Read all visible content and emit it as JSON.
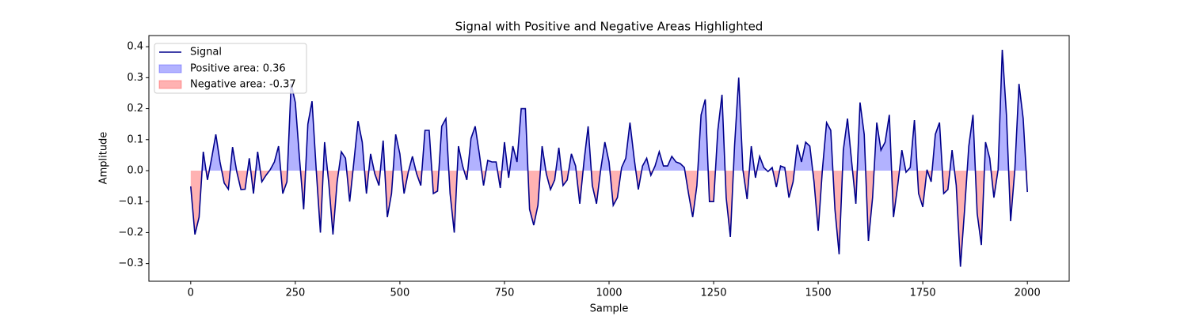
{
  "chart_data": {
    "type": "line",
    "title": "Signal with Positive and Negative Areas Highlighted",
    "xlabel": "Sample",
    "ylabel": "Amplitude",
    "xlim": [
      -100,
      2100
    ],
    "ylim": [
      -0.357,
      0.436
    ],
    "xticks": [
      0,
      250,
      500,
      750,
      1000,
      1250,
      1500,
      1750,
      2000
    ],
    "yticks": [
      {
        "value": -0.3,
        "label": "−0.3"
      },
      {
        "value": -0.2,
        "label": "−0.2"
      },
      {
        "value": -0.1,
        "label": "−0.1"
      },
      {
        "value": 0,
        "label": "0.0"
      },
      0.1,
      0.2,
      0.3,
      0.4
    ],
    "legend": "upper left",
    "x": [
      0,
      10,
      20,
      30,
      40,
      50,
      60,
      70,
      80,
      90,
      100,
      110,
      120,
      130,
      140,
      150,
      160,
      170,
      180,
      190,
      200,
      210,
      220,
      230,
      240,
      250,
      260,
      270,
      280,
      290,
      300,
      310,
      320,
      330,
      340,
      350,
      360,
      370,
      380,
      390,
      400,
      410,
      420,
      430,
      440,
      450,
      460,
      470,
      480,
      490,
      500,
      510,
      520,
      530,
      540,
      550,
      560,
      570,
      580,
      590,
      600,
      610,
      620,
      630,
      640,
      650,
      660,
      670,
      680,
      690,
      700,
      710,
      720,
      730,
      740,
      750,
      760,
      770,
      780,
      790,
      800,
      810,
      820,
      830,
      840,
      850,
      860,
      870,
      880,
      890,
      900,
      910,
      920,
      930,
      940,
      950,
      960,
      970,
      980,
      990,
      1000,
      1010,
      1020,
      1030,
      1040,
      1050,
      1060,
      1070,
      1080,
      1090,
      1100,
      1110,
      1120,
      1130,
      1140,
      1150,
      1160,
      1170,
      1180,
      1190,
      1200,
      1210,
      1220,
      1230,
      1240,
      1250,
      1260,
      1270,
      1280,
      1290,
      1300,
      1310,
      1320,
      1330,
      1340,
      1350,
      1360,
      1370,
      1380,
      1390,
      1400,
      1410,
      1420,
      1430,
      1440,
      1450,
      1460,
      1470,
      1480,
      1490,
      1500,
      1510,
      1520,
      1530,
      1540,
      1550,
      1560,
      1570,
      1580,
      1590,
      1600,
      1610,
      1620,
      1630,
      1640,
      1650,
      1660,
      1670,
      1680,
      1690,
      1700,
      1710,
      1720,
      1730,
      1740,
      1750,
      1760,
      1770,
      1780,
      1790,
      1800,
      1810,
      1820,
      1830,
      1840,
      1850,
      1860,
      1870,
      1880,
      1890,
      1900,
      1910,
      1920,
      1930,
      1940,
      1950,
      1960,
      1970,
      1980,
      1990,
      2000
    ],
    "series": [
      {
        "name": "Signal",
        "color": "#00008b",
        "values": [
          -0.051,
          -0.206,
          -0.15,
          0.061,
          -0.03,
          0.04,
          0.117,
          0.028,
          -0.04,
          -0.06,
          0.076,
          -0.003,
          -0.061,
          -0.06,
          0.04,
          -0.074,
          0.061,
          -0.036,
          -0.015,
          0.003,
          0.028,
          0.079,
          -0.074,
          -0.036,
          0.28,
          0.22,
          0.04,
          -0.125,
          0.15,
          0.224,
          0.003,
          -0.2,
          0.092,
          -0.04,
          -0.206,
          -0.036,
          0.061,
          0.04,
          -0.1,
          0.028,
          0.16,
          0.092,
          -0.074,
          0.054,
          -0.01,
          -0.048,
          0.097,
          -0.15,
          -0.074,
          0.117,
          0.054,
          -0.074,
          -0.005,
          0.046,
          -0.01,
          -0.048,
          0.13,
          0.13,
          -0.074,
          -0.066,
          0.143,
          0.168,
          -0.074,
          -0.2,
          0.079,
          0.015,
          -0.03,
          0.104,
          0.143,
          0.054,
          -0.048,
          0.033,
          0.028,
          0.028,
          -0.056,
          0.092,
          -0.023,
          0.079,
          0.028,
          0.2,
          0.2,
          -0.125,
          -0.176,
          -0.112,
          0.079,
          -0.01,
          -0.061,
          -0.03,
          0.074,
          -0.048,
          -0.03,
          0.054,
          0.015,
          -0.107,
          0.028,
          0.143,
          -0.048,
          -0.107,
          0.003,
          0.092,
          0.028,
          -0.112,
          -0.087,
          0.01,
          0.04,
          0.155,
          0.04,
          -0.061,
          0.015,
          0.04,
          -0.015,
          0.015,
          0.061,
          0.015,
          0.015,
          0.046,
          0.028,
          0.023,
          0.01,
          -0.074,
          -0.15,
          -0.048,
          0.18,
          0.23,
          -0.1,
          -0.1,
          0.13,
          0.245,
          -0.087,
          -0.214,
          0.079,
          0.3,
          0.003,
          -0.092,
          0.079,
          -0.023,
          0.046,
          0.01,
          -0.003,
          0.01,
          -0.053,
          0.015,
          0.01,
          -0.087,
          -0.036,
          0.084,
          0.028,
          0.092,
          0.079,
          -0.036,
          -0.194,
          0.003,
          0.155,
          0.13,
          -0.125,
          -0.27,
          0.066,
          0.168,
          0.028,
          -0.107,
          0.22,
          0.117,
          -0.227,
          -0.087,
          0.155,
          0.066,
          0.092,
          0.18,
          -0.15,
          -0.048,
          0.066,
          -0.005,
          0.01,
          0.163,
          -0.074,
          -0.117,
          0.003,
          -0.036,
          0.117,
          0.155,
          -0.074,
          -0.061,
          0.066,
          -0.048,
          -0.31,
          -0.125,
          0.079,
          0.18,
          -0.138,
          -0.24,
          0.092,
          0.04,
          -0.087,
          0.003,
          0.39,
          0.18,
          -0.163,
          0.003,
          0.28,
          0.168,
          -0.069
        ]
      }
    ],
    "areas": [
      {
        "name": "Positive area: 0.36",
        "color": "#0000ff",
        "alpha": 0.3,
        "sign": "positive"
      },
      {
        "name": "Negative area: -0.37",
        "color": "#ff0000",
        "alpha": 0.3,
        "sign": "negative"
      }
    ]
  }
}
